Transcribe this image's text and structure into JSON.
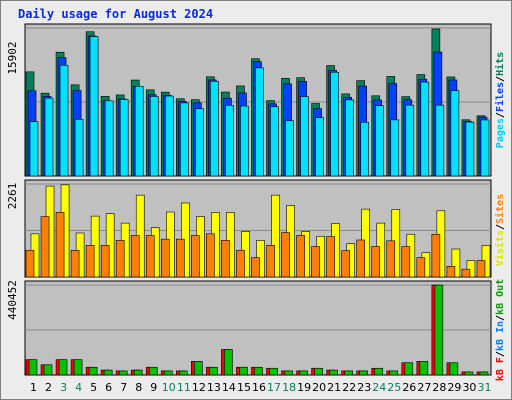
{
  "title": "Daily usage for August 2024",
  "colors": {
    "hits": "#00805c",
    "files": "#0040ff",
    "pages": "#00e0ff",
    "visits": "#ffff00",
    "sites": "#ff8000",
    "kbf": "#ff0000",
    "kbin": "#0080ff",
    "kbout": "#00c000",
    "panel": "#c0c0c0",
    "weekend": "#00805c",
    "weekday": "#000000"
  },
  "chart_data": [
    {
      "type": "bar",
      "ymax_label": "15902",
      "right_labels": [
        {
          "text": "Pages",
          "color": "#00c8f0"
        },
        {
          "text": "/",
          "color": "#000000"
        },
        {
          "text": "Files",
          "color": "#0040ff"
        },
        {
          "text": "/",
          "color": "#000000"
        },
        {
          "text": "Hits",
          "color": "#00805c"
        }
      ],
      "x": [
        1,
        2,
        3,
        4,
        5,
        6,
        7,
        8,
        9,
        10,
        11,
        12,
        13,
        14,
        15,
        16,
        17,
        18,
        19,
        20,
        21,
        22,
        23,
        24,
        25,
        26,
        27,
        28,
        29,
        30,
        31
      ],
      "series": [
        {
          "name": "Hits",
          "values": [
            11190,
            8900,
            13300,
            9800,
            15500,
            8560,
            8710,
            10310,
            9260,
            9010,
            8300,
            8200,
            10660,
            9020,
            9680,
            12600,
            8100,
            10500,
            10560,
            7790,
            11870,
            8820,
            10250,
            8620,
            10700,
            8530,
            10900,
            15800,
            10640,
            6040,
            6470
          ]
        },
        {
          "name": "Files",
          "values": [
            9160,
            8550,
            12710,
            9180,
            15040,
            8080,
            8280,
            9640,
            8740,
            8660,
            8010,
            7860,
            10320,
            8360,
            8920,
            12280,
            7750,
            9910,
            10170,
            7240,
            11360,
            8460,
            9660,
            8170,
            9930,
            8190,
            10400,
            13320,
            10320,
            5860,
            6330
          ]
        },
        {
          "name": "Pages",
          "values": [
            5840,
            8370,
            11900,
            6080,
            14980,
            8080,
            8220,
            9640,
            8540,
            8590,
            7850,
            7230,
            10180,
            7600,
            7520,
            11620,
            7440,
            5940,
            8520,
            6270,
            11140,
            8180,
            5770,
            7550,
            6030,
            7610,
            10090,
            7610,
            9170,
            5790,
            6020
          ]
        }
      ]
    },
    {
      "type": "bar",
      "ymax_label": "2261",
      "right_labels": [
        {
          "text": "Visits",
          "color": "#e0e000"
        },
        {
          "text": "/",
          "color": "#000000"
        },
        {
          "text": "Sites",
          "color": "#ff8000"
        }
      ],
      "x": [
        1,
        2,
        3,
        4,
        5,
        6,
        7,
        8,
        9,
        10,
        11,
        12,
        13,
        14,
        15,
        16,
        17,
        18,
        19,
        20,
        21,
        22,
        23,
        24,
        25,
        26,
        27,
        28,
        29,
        30,
        31
      ],
      "series": [
        {
          "name": "Visits",
          "values": [
            1050,
            2210,
            2240,
            1070,
            1480,
            1540,
            1310,
            1990,
            1200,
            1580,
            1800,
            1470,
            1570,
            1570,
            1110,
            890,
            1990,
            1740,
            1110,
            990,
            1300,
            810,
            1650,
            1310,
            1640,
            1040,
            590,
            1610,
            680,
            400,
            770
          ]
        },
        {
          "name": "Sites",
          "values": [
            650,
            1470,
            1570,
            650,
            770,
            770,
            890,
            1010,
            1010,
            920,
            920,
            1010,
            1050,
            890,
            650,
            470,
            770,
            1080,
            1010,
            740,
            980,
            640,
            900,
            740,
            880,
            740,
            470,
            1040,
            260,
            190,
            400
          ]
        }
      ]
    },
    {
      "type": "bar",
      "ymax_label": "440452",
      "right_labels": [
        {
          "text": "kB F",
          "color": "#ff0000"
        },
        {
          "text": "/",
          "color": "#000000"
        },
        {
          "text": "kB In",
          "color": "#0080ff"
        },
        {
          "text": "/",
          "color": "#000000"
        },
        {
          "text": "kB Out",
          "color": "#00a000"
        }
      ],
      "x_labels": [
        "1",
        "2",
        "3",
        "4",
        "5",
        "6",
        "7",
        "8",
        "9",
        "10",
        "11",
        "12",
        "13",
        "14",
        "15",
        "16",
        "17",
        "18",
        "19",
        "20",
        "21",
        "22",
        "23",
        "24",
        "25",
        "26",
        "27",
        "28",
        "29",
        "30",
        "31"
      ],
      "weekend_days": [
        3,
        4,
        10,
        11,
        17,
        18,
        24,
        25,
        31
      ],
      "x": [
        1,
        2,
        3,
        4,
        5,
        6,
        7,
        8,
        9,
        10,
        11,
        12,
        13,
        14,
        15,
        16,
        17,
        18,
        19,
        20,
        21,
        22,
        23,
        24,
        25,
        26,
        27,
        28,
        29,
        30,
        31
      ],
      "series": [
        {
          "name": "kB F",
          "values": [
            75000,
            50000,
            75000,
            75000,
            38000,
            24000,
            20000,
            24000,
            38000,
            20000,
            20000,
            67000,
            38000,
            125000,
            38000,
            38000,
            33000,
            20000,
            20000,
            33000,
            24000,
            20000,
            20000,
            33000,
            20000,
            60000,
            67000,
            440000,
            60000,
            15000,
            15000
          ]
        },
        {
          "name": "kB Out",
          "values": [
            75000,
            50000,
            75000,
            75000,
            38000,
            24000,
            20000,
            24000,
            38000,
            20000,
            20000,
            67000,
            38000,
            125000,
            38000,
            38000,
            33000,
            20000,
            20000,
            33000,
            24000,
            20000,
            20000,
            33000,
            20000,
            60000,
            67000,
            440000,
            60000,
            15000,
            15000
          ]
        }
      ]
    }
  ]
}
